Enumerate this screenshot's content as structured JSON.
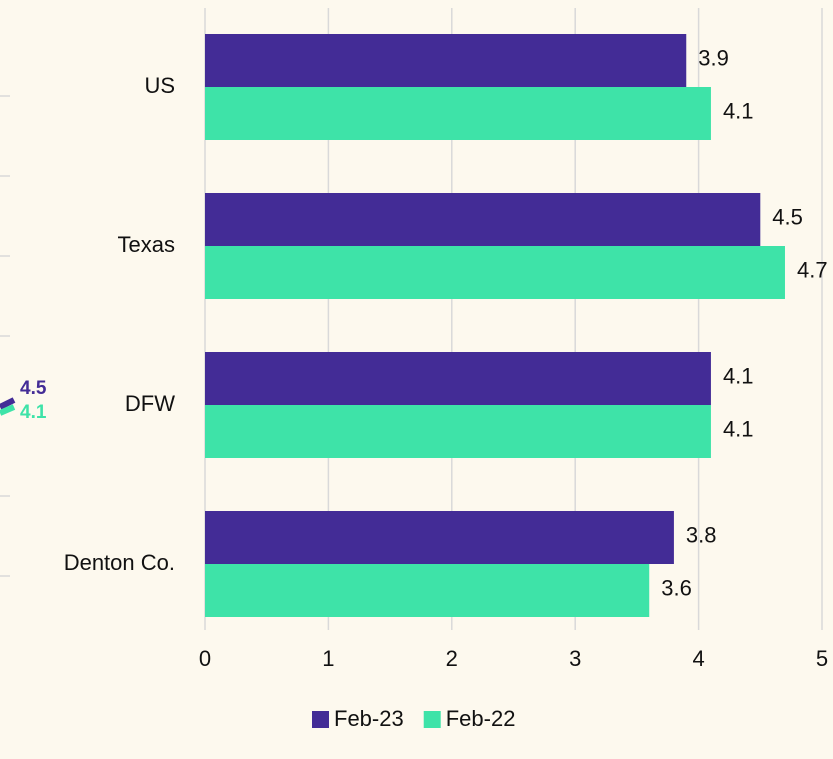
{
  "chart_data": [
    {
      "type": "barh",
      "categories": [
        "US",
        "Texas",
        "DFW",
        "Denton Co."
      ],
      "series": [
        {
          "name": "Feb-23",
          "color": "#432c96",
          "values": [
            3.9,
            4.5,
            4.1,
            3.8
          ]
        },
        {
          "name": "Feb-22",
          "color": "#3ee3a8",
          "values": [
            4.1,
            4.7,
            4.1,
            3.6
          ]
        }
      ],
      "xlim": [
        0,
        5
      ],
      "xticks": [
        0,
        1,
        2,
        3,
        4,
        5
      ],
      "grid": true,
      "legend": "bottom"
    },
    {
      "type": "line",
      "series": [
        {
          "color": "#432c96",
          "values": [
            4.5
          ]
        },
        {
          "color": "#3ee3a8",
          "values": [
            4.1
          ]
        }
      ]
    }
  ]
}
